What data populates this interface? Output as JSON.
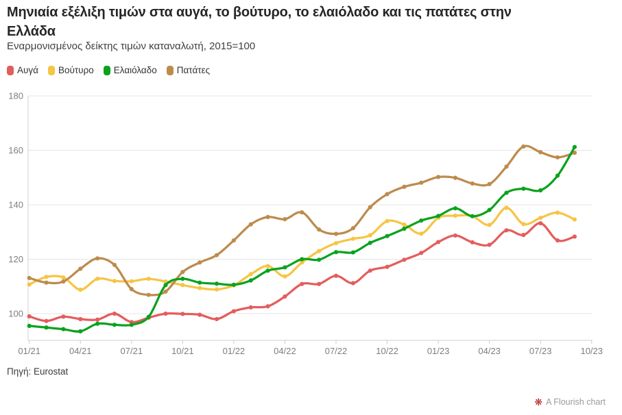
{
  "header": {
    "title": "Μηνιαία εξέλιξη τιμών στα αυγά, το βούτυρο, το ελαιόλαδο και τις πατάτες στην Ελλάδα",
    "subtitle": "Εναρμονισμένος δείκτης τιμών καταναλωτή, 2015=100"
  },
  "chart_data": {
    "type": "line",
    "x": [
      "01/21",
      "02/21",
      "03/21",
      "04/21",
      "05/21",
      "06/21",
      "07/21",
      "08/21",
      "09/21",
      "10/21",
      "11/21",
      "12/21",
      "01/22",
      "02/22",
      "03/22",
      "04/22",
      "05/22",
      "06/22",
      "07/22",
      "08/22",
      "09/22",
      "10/22",
      "11/22",
      "12/22",
      "01/23",
      "02/23",
      "03/23",
      "04/23",
      "05/23",
      "06/23",
      "07/23",
      "08/23",
      "09/23"
    ],
    "series": [
      {
        "id": "eggs",
        "name": "Αυγά",
        "color": "#e45d5d",
        "values": [
          99.0,
          97.3,
          98.9,
          98.0,
          97.8,
          100.0,
          96.9,
          98.5,
          100.0,
          99.9,
          99.6,
          98.0,
          100.9,
          102.3,
          102.7,
          106.3,
          110.9,
          110.9,
          113.9,
          111.2,
          115.8,
          117.2,
          119.8,
          122.3,
          126.3,
          128.7,
          126.2,
          125.3,
          130.6,
          128.9,
          133.2,
          126.9,
          128.3
        ]
      },
      {
        "id": "butter",
        "name": "Βούτυρο",
        "color": "#f6c545",
        "values": [
          110.7,
          113.5,
          113.3,
          108.8,
          112.8,
          112.0,
          111.9,
          112.8,
          111.8,
          110.5,
          109.4,
          108.9,
          110.4,
          114.5,
          117.5,
          113.7,
          118.8,
          123.0,
          125.9,
          127.5,
          128.8,
          134.0,
          132.7,
          129.4,
          135.2,
          136.0,
          135.8,
          132.6,
          138.9,
          132.9,
          135.2,
          137.1,
          134.6
        ]
      },
      {
        "id": "olive-oil",
        "name": "Ελαιόλαδο",
        "color": "#0aa21e",
        "values": [
          95.5,
          94.9,
          94.3,
          93.5,
          96.3,
          95.9,
          95.9,
          98.8,
          110.5,
          112.8,
          111.4,
          111.0,
          110.6,
          112.2,
          115.8,
          117.0,
          120.0,
          119.8,
          122.6,
          122.5,
          126.0,
          128.5,
          131.2,
          134.2,
          135.9,
          138.7,
          135.8,
          138.1,
          144.4,
          145.9,
          145.3,
          150.7,
          161.2
        ]
      },
      {
        "id": "potatoes",
        "name": "Πατάτες",
        "color": "#bd8b4c",
        "values": [
          113.1,
          111.4,
          111.8,
          116.5,
          120.3,
          117.9,
          109.0,
          106.9,
          108.1,
          115.3,
          118.8,
          121.5,
          126.9,
          132.8,
          135.5,
          134.7,
          137.2,
          130.9,
          129.3,
          131.4,
          139.1,
          143.9,
          146.6,
          148.1,
          150.2,
          149.9,
          147.8,
          147.6,
          154.0,
          161.4,
          159.3,
          157.4,
          159.1
        ]
      }
    ],
    "draw_order": [
      0,
      1,
      3,
      2
    ],
    "ylim": [
      90,
      180
    ],
    "y_ticks": [
      100,
      120,
      140,
      160,
      180
    ],
    "x_tick_labels": [
      "01/21",
      "04/21",
      "07/21",
      "10/21",
      "01/22",
      "04/22",
      "07/22",
      "10/22",
      "01/23",
      "04/23",
      "07/23",
      "10/23"
    ],
    "x_tick_step": 3,
    "grid": "horizontal",
    "legend_position": "top",
    "marker": "circle",
    "title": "Μηνιαία εξέλιξη τιμών στα αυγά, το βούτυρο, το ελαιόλαδο και τις πατάτες στην Ελλάδα",
    "subtitle": "Εναρμονισμένος δείκτης τιμών καταναλωτή, 2015=100"
  },
  "footer": {
    "source": "Πηγή: Eurostat"
  },
  "credit": {
    "icon": "❋",
    "icon_name": "flourish-burst-icon",
    "label": "A Flourish chart",
    "icon_color": "#b32020",
    "text_color": "#9a9a9a"
  }
}
